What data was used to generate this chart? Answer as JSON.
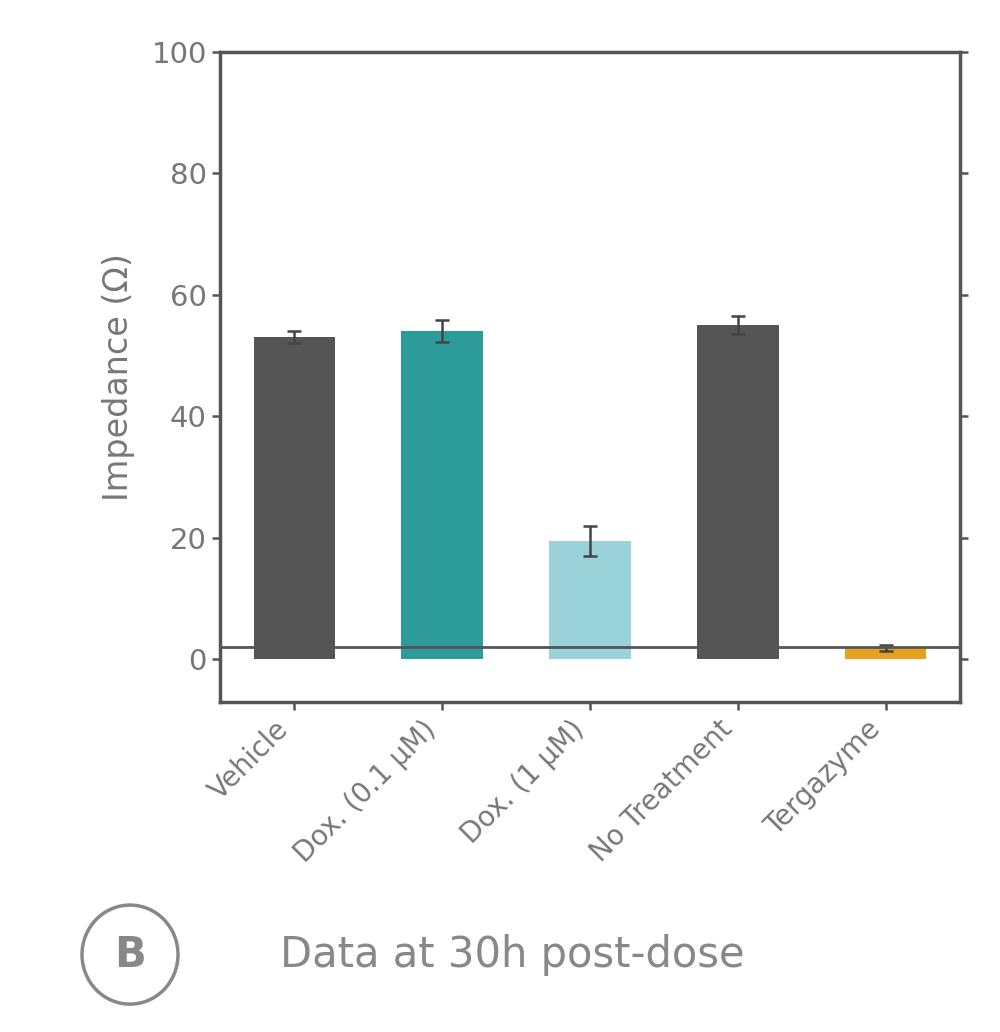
{
  "categories": [
    "Vehicle",
    "Dox. (0.1 μM)",
    "Dox. (1 μM)",
    "No Treatment",
    "Tergazyme"
  ],
  "values": [
    53.0,
    54.0,
    19.5,
    55.0,
    1.8
  ],
  "errors": [
    1.0,
    1.8,
    2.5,
    1.5,
    0.5
  ],
  "bar_colors": [
    "#555555",
    "#2e9b9b",
    "#99d3d9",
    "#555555",
    "#e8a020"
  ],
  "ylim": [
    -7,
    100
  ],
  "yticks": [
    0,
    20,
    40,
    60,
    80,
    100
  ],
  "ylabel": "Impedance (Ω)",
  "ylabel_fontsize": 24,
  "tick_fontsize": 21,
  "xlabel_fontsize": 20,
  "background_color": "#ffffff",
  "annotation_text": "Data at 30h post-dose",
  "annotation_label": "B",
  "annotation_fontsize": 30,
  "bar_width": 0.55,
  "spine_color": "#555555",
  "hline_y": 2.0,
  "hline_color": "#555555",
  "hline_lw": 2.0,
  "spine_lw": 2.5,
  "tick_color": "#777777",
  "label_color": "#777777"
}
